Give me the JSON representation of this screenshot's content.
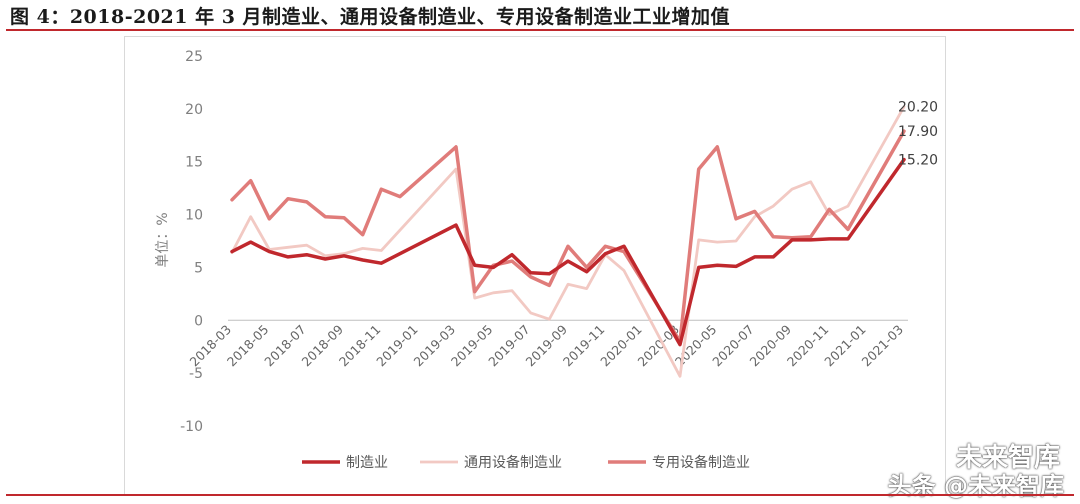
{
  "title": "图 4：2018-2021 年 3 月制造业、通用设备制造业、专用设备制造业工业增加值",
  "watermark": {
    "line1": "未来智库",
    "line2": "头条 @未来智库"
  },
  "colors": {
    "rule": "#c0282d",
    "manufacturing": "#c0282d",
    "general": "#f2c9c3",
    "special": "#e07c7a"
  },
  "chart_data": {
    "type": "line",
    "ylabel": "单位：%",
    "ylim": [
      -10,
      25
    ],
    "yticks": [
      -10,
      -5,
      0,
      5,
      10,
      15,
      20,
      25
    ],
    "grid": false,
    "legend_position": "bottom",
    "x": [
      "2018-03",
      "2018-04",
      "2018-05",
      "2018-06",
      "2018-07",
      "2018-08",
      "2018-09",
      "2018-10",
      "2018-11",
      "2018-12",
      "2019-01",
      "2019-02",
      "2019-03",
      "2019-04",
      "2019-05",
      "2019-06",
      "2019-07",
      "2019-08",
      "2019-09",
      "2019-10",
      "2019-11",
      "2019-12",
      "2020-01",
      "2020-02",
      "2020-03",
      "2020-04",
      "2020-05",
      "2020-06",
      "2020-07",
      "2020-08",
      "2020-09",
      "2020-10",
      "2020-11",
      "2020-12",
      "2021-01",
      "2021-02",
      "2021-03"
    ],
    "xtick_labels": [
      "2018-03",
      "2018-05",
      "2018-07",
      "2018-09",
      "2018-11",
      "2019-01",
      "2019-03",
      "2019-05",
      "2019-07",
      "2019-09",
      "2019-11",
      "2020-01",
      "2020-03",
      "2020-05",
      "2020-07",
      "2020-09",
      "2020-11",
      "2021-01",
      "2021-03"
    ],
    "series": [
      {
        "name": "制造业",
        "values": [
          6.5,
          7.4,
          6.5,
          6.0,
          6.2,
          5.8,
          6.1,
          5.7,
          5.4,
          null,
          null,
          null,
          9.0,
          5.2,
          5.0,
          6.2,
          4.5,
          4.4,
          5.6,
          4.6,
          6.3,
          7.0,
          null,
          null,
          -2.3,
          5.0,
          5.2,
          5.1,
          6.0,
          6.0,
          7.6,
          7.6,
          7.7,
          7.7,
          null,
          null,
          15.2
        ]
      },
      {
        "name": "通用设备制造业",
        "values": [
          6.4,
          9.8,
          6.7,
          6.9,
          7.1,
          6.1,
          6.3,
          6.8,
          6.6,
          null,
          null,
          null,
          14.3,
          2.1,
          2.6,
          2.8,
          0.7,
          0.1,
          3.4,
          3.0,
          6.2,
          4.7,
          null,
          null,
          -5.3,
          7.6,
          7.4,
          7.5,
          9.8,
          10.8,
          12.4,
          13.1,
          10.0,
          10.8,
          null,
          null,
          20.2
        ]
      },
      {
        "name": "专用设备制造业",
        "values": [
          11.4,
          13.2,
          9.6,
          11.5,
          11.2,
          9.8,
          9.7,
          8.1,
          12.4,
          11.7,
          null,
          null,
          16.4,
          2.7,
          5.2,
          5.6,
          4.1,
          3.3,
          7.0,
          5.0,
          7.0,
          6.5,
          null,
          null,
          -2.0,
          14.3,
          16.4,
          9.6,
          10.3,
          7.9,
          7.8,
          7.9,
          10.5,
          8.6,
          null,
          null,
          17.9
        ]
      }
    ],
    "data_labels": [
      "20.20",
      "17.90",
      "15.20"
    ]
  }
}
